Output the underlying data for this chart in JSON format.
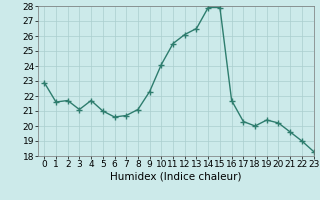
{
  "x": [
    0,
    1,
    2,
    3,
    4,
    5,
    6,
    7,
    8,
    9,
    10,
    11,
    12,
    13,
    14,
    15,
    16,
    17,
    18,
    19,
    20,
    21,
    22,
    23
  ],
  "y": [
    22.9,
    21.6,
    21.7,
    21.1,
    21.7,
    21.0,
    20.6,
    20.7,
    21.1,
    22.3,
    24.1,
    25.5,
    26.1,
    26.5,
    27.9,
    27.9,
    21.7,
    20.3,
    20.0,
    20.4,
    20.2,
    19.6,
    19.0,
    18.3
  ],
  "line_color": "#2e7d6e",
  "marker": "+",
  "marker_size": 4,
  "marker_lw": 1.0,
  "bg_color": "#cceaea",
  "grid_color": "#aacece",
  "xlabel": "Humidex (Indice chaleur)",
  "ylim": [
    18,
    28
  ],
  "xlim": [
    -0.5,
    23
  ],
  "yticks": [
    18,
    19,
    20,
    21,
    22,
    23,
    24,
    25,
    26,
    27,
    28
  ],
  "xticks": [
    0,
    1,
    2,
    3,
    4,
    5,
    6,
    7,
    8,
    9,
    10,
    11,
    12,
    13,
    14,
    15,
    16,
    17,
    18,
    19,
    20,
    21,
    22,
    23
  ],
  "tick_fontsize": 6.5,
  "xlabel_fontsize": 7.5,
  "line_width": 1.0
}
